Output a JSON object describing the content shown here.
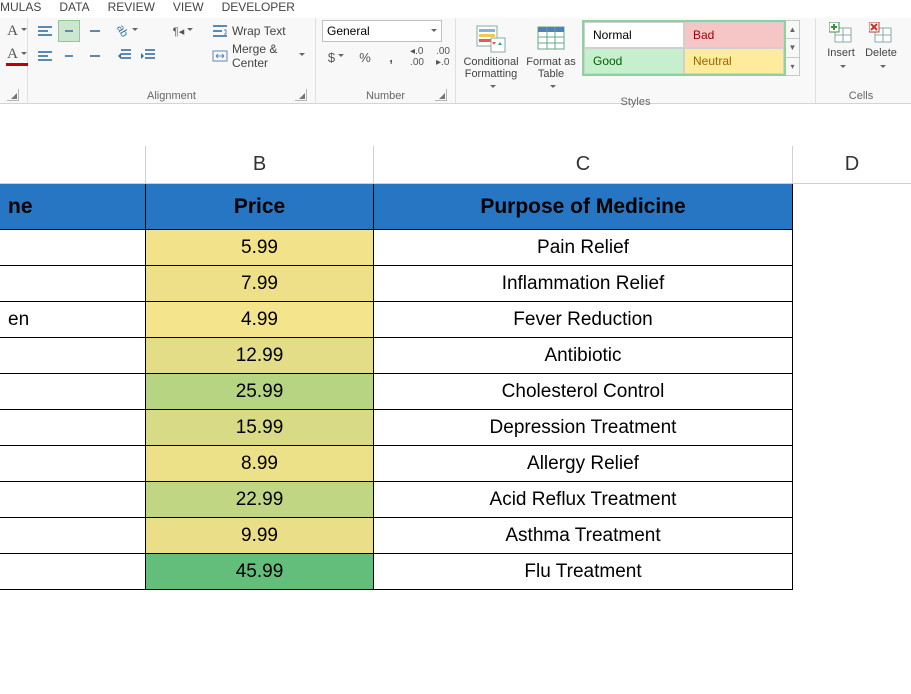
{
  "tabs": {
    "t0": "MULAS",
    "t1": "DATA",
    "t2": "REVIEW",
    "t3": "VIEW",
    "t4": "DEVELOPER"
  },
  "ribbon": {
    "alignment": {
      "wrap_label": "Wrap Text",
      "merge_label": "Merge & Center",
      "group_label": "Alignment"
    },
    "number": {
      "format_value": "General",
      "group_label": "Number",
      "currency": "$",
      "percent": "%",
      "comma": ",",
      "inc_dec": "Increase/Decrease Decimal"
    },
    "styles": {
      "cond_fmt_label": "Conditional Formatting",
      "fmt_table_label": "Format as Table",
      "gallery": {
        "c0": {
          "label": "Normal",
          "bg": "#ffffff",
          "fg": "#000000"
        },
        "c1": {
          "label": "Bad",
          "bg": "#f6c6c7",
          "fg": "#9c0006"
        },
        "c2": {
          "label": "Good",
          "bg": "#c6efce",
          "fg": "#006100"
        },
        "c3": {
          "label": "Neutral",
          "bg": "#ffeb9c",
          "fg": "#9c6500"
        }
      },
      "group_label": "Styles"
    },
    "cells": {
      "insert_label": "Insert",
      "delete_label": "Delete",
      "group_label": "Cells"
    }
  },
  "columns": {
    "A": "",
    "B": "B",
    "C": "C",
    "D": "D"
  },
  "sheet": {
    "header": {
      "a": "ne",
      "b": "Price",
      "c": "Purpose of Medicine"
    },
    "rows": [
      {
        "a": "",
        "b": "5.99",
        "b_bg": "#f2e38a",
        "c": "Pain Relief"
      },
      {
        "a": "",
        "b": "7.99",
        "b_bg": "#eee089",
        "c": "Inflammation Relief"
      },
      {
        "a": "en",
        "b": "4.99",
        "b_bg": "#f4e48b",
        "c": "Fever Reduction"
      },
      {
        "a": "",
        "b": "12.99",
        "b_bg": "#e3dd87",
        "c": "Antibiotic"
      },
      {
        "a": "",
        "b": "25.99",
        "b_bg": "#b6d481",
        "c": "Cholesterol Control"
      },
      {
        "a": "",
        "b": "15.99",
        "b_bg": "#d9da85",
        "c": "Depression Treatment"
      },
      {
        "a": "",
        "b": "8.99",
        "b_bg": "#ece089",
        "c": "Allergy Relief"
      },
      {
        "a": "",
        "b": "22.99",
        "b_bg": "#c1d683",
        "c": "Acid Reflux Treatment"
      },
      {
        "a": "",
        "b": "9.99",
        "b_bg": "#eadf88",
        "c": "Asthma Treatment"
      },
      {
        "a": "",
        "b": "45.99",
        "b_bg": "#63be7b",
        "c": "Flu Treatment"
      }
    ]
  }
}
